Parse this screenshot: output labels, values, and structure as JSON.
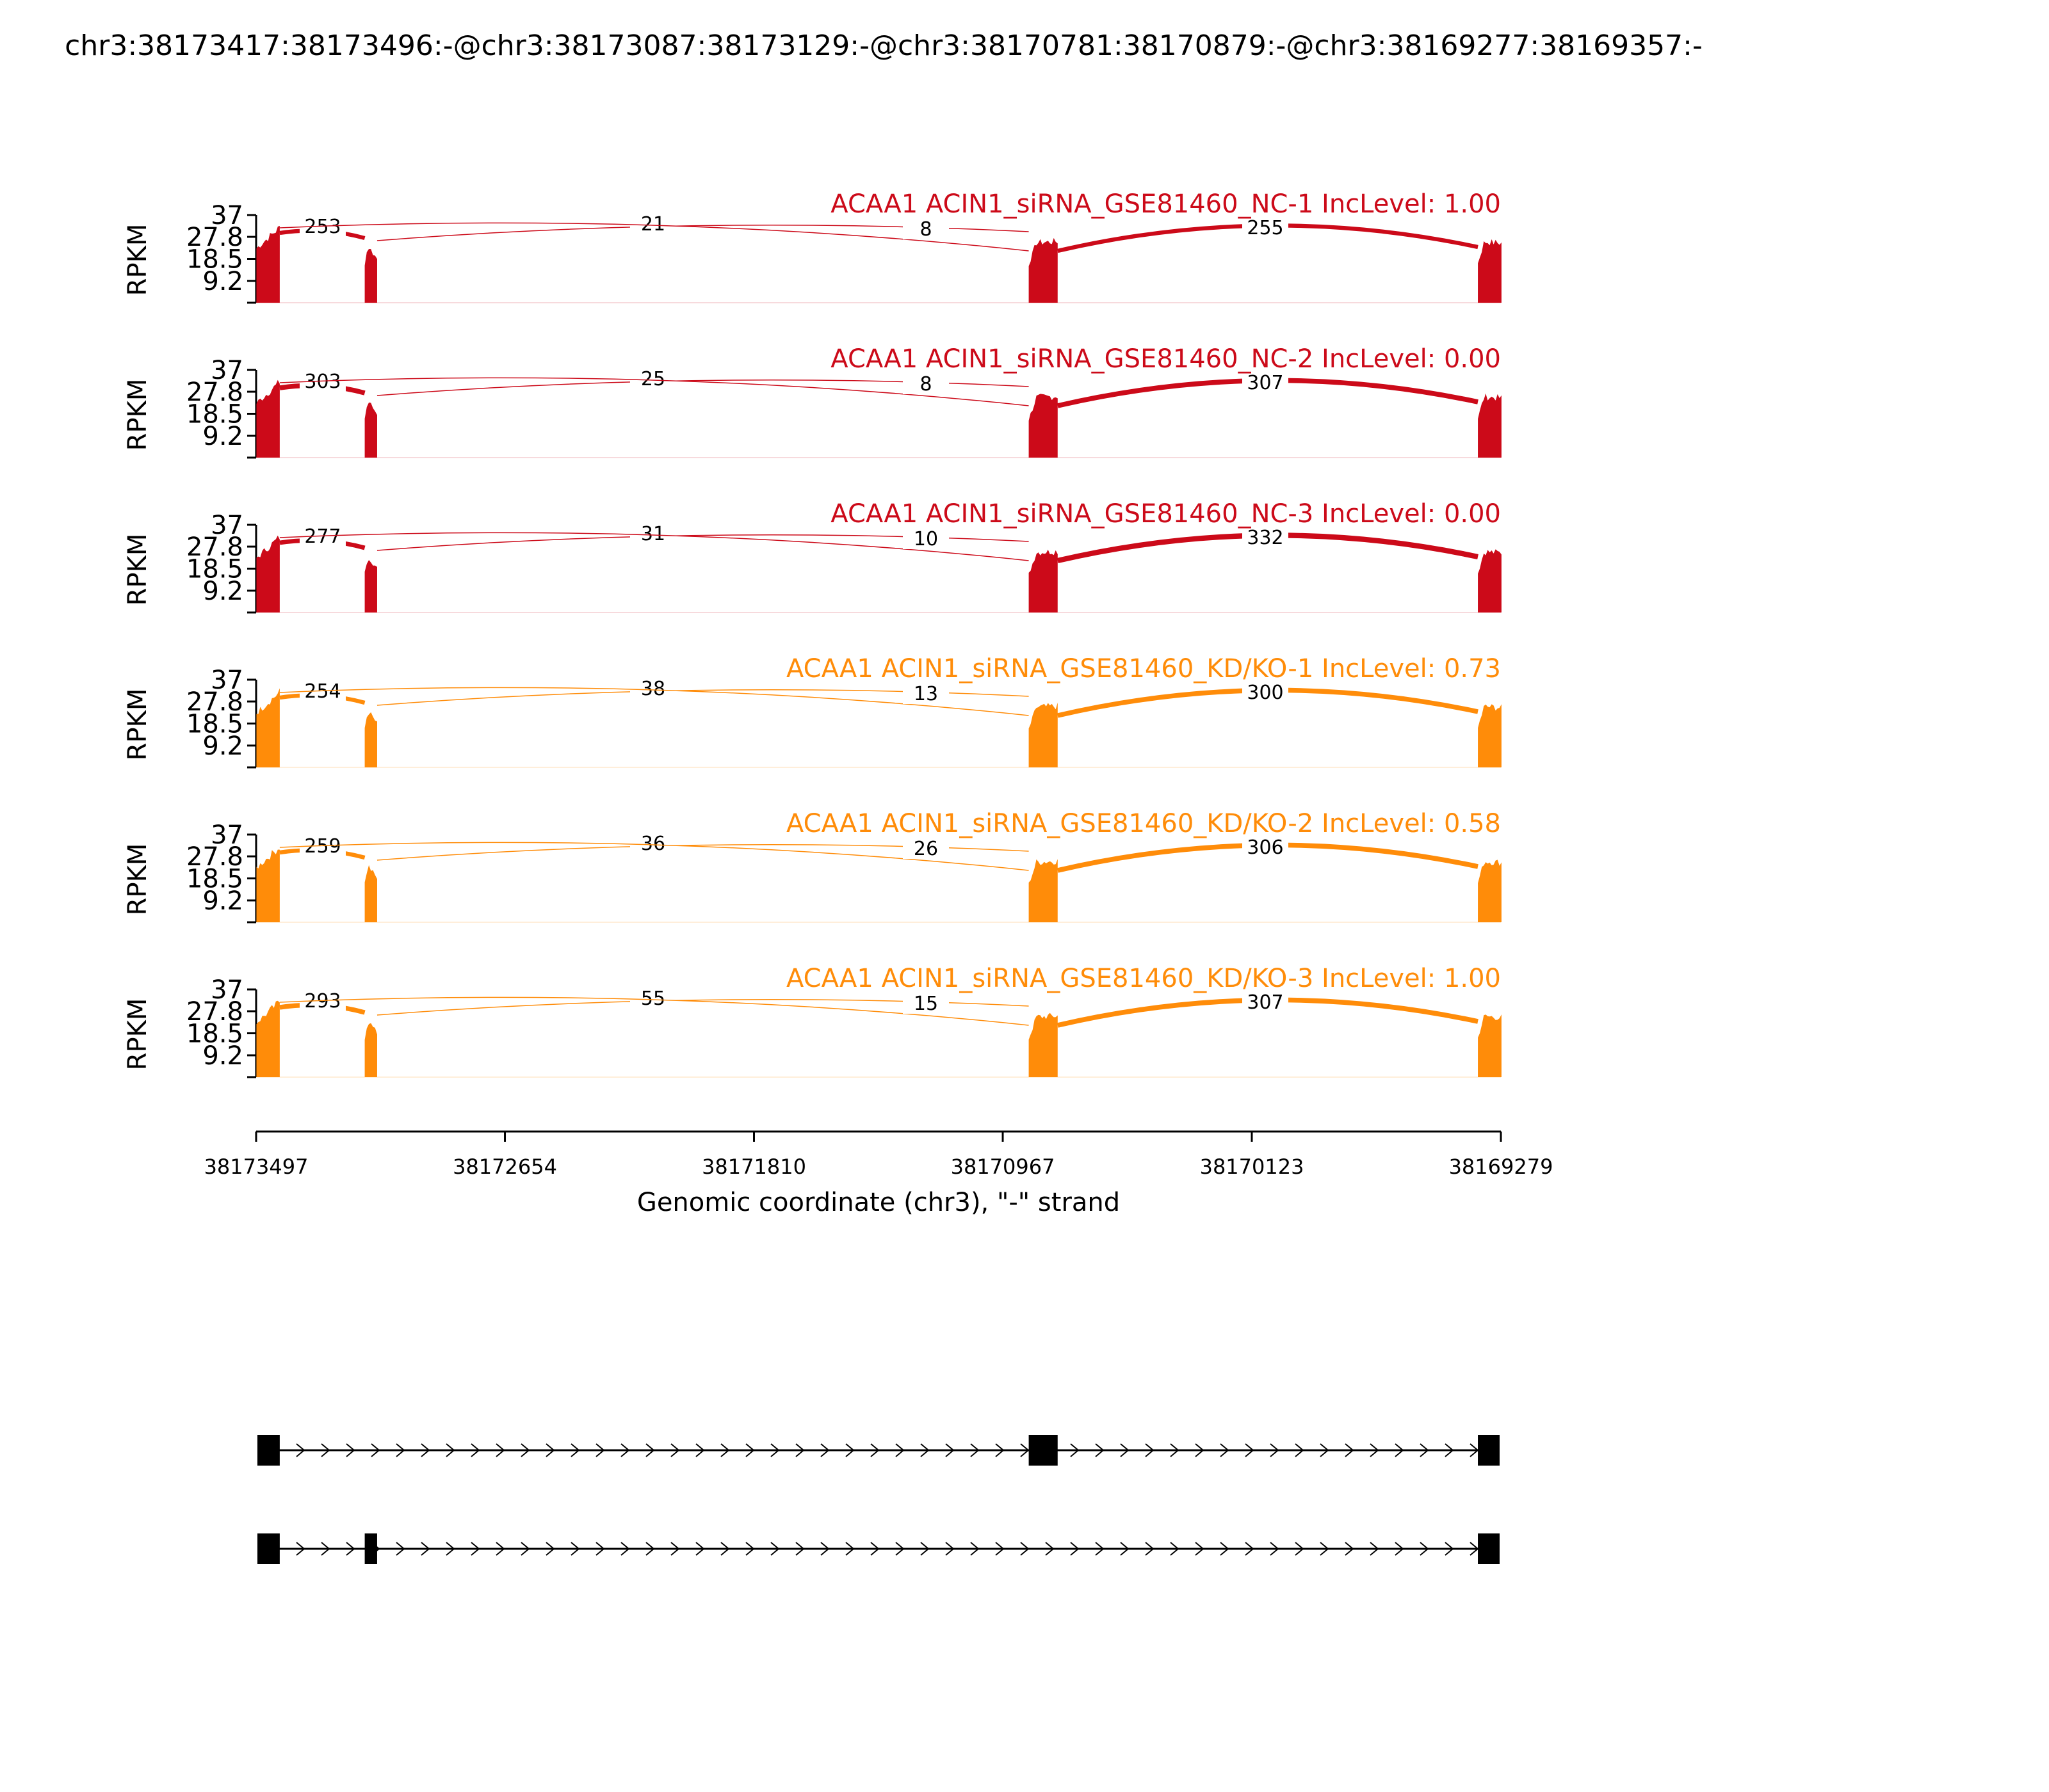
{
  "chart_data": {
    "type": "sashimi",
    "title": "chr3:38173417:38173496:-@chr3:38173087:38173129:-@chr3:38170781:38170879:-@chr3:38169277:38169357:-",
    "xlabel": "Genomic coordinate (chr3), \"-\" strand",
    "ylabel": "RPKM",
    "x_range": [
      38173497,
      38169279
    ],
    "x_ticks": [
      "38173497",
      "38172654",
      "38171810",
      "38170967",
      "38170123",
      "38169279"
    ],
    "y_range": [
      0,
      37
    ],
    "y_ticks": [
      "37",
      "27.8",
      "18.5",
      "9.2"
    ],
    "colors": {
      "NC": "#cc0a19",
      "KD": "#ff8c09",
      "structure": "#000000"
    },
    "exons": [
      {
        "start": 38173496,
        "end": 38173417
      },
      {
        "start": 38173129,
        "end": 38173087
      },
      {
        "start": 38170879,
        "end": 38170781
      },
      {
        "start": 38169357,
        "end": 38169277
      }
    ],
    "tracks": [
      {
        "group": "NC",
        "label": "ACAA1 ACIN1_siRNA_GSE81460_NC-1 IncLevel: 1.00",
        "junctions": [
          {
            "from": 38173417,
            "to": 38173129,
            "count": "253"
          },
          {
            "from": 38173087,
            "to": 38170879,
            "count": "21"
          },
          {
            "from": 38173417,
            "to": 38170879,
            "count": "8"
          },
          {
            "from": 38170781,
            "to": 38169357,
            "count": "255"
          }
        ]
      },
      {
        "group": "NC",
        "label": "ACAA1 ACIN1_siRNA_GSE81460_NC-2 IncLevel: 0.00",
        "junctions": [
          {
            "from": 38173417,
            "to": 38173129,
            "count": "303"
          },
          {
            "from": 38173087,
            "to": 38170879,
            "count": "25"
          },
          {
            "from": 38173417,
            "to": 38170879,
            "count": "8"
          },
          {
            "from": 38170781,
            "to": 38169357,
            "count": "307"
          }
        ]
      },
      {
        "group": "NC",
        "label": "ACAA1 ACIN1_siRNA_GSE81460_NC-3 IncLevel: 0.00",
        "junctions": [
          {
            "from": 38173417,
            "to": 38173129,
            "count": "277"
          },
          {
            "from": 38173087,
            "to": 38170879,
            "count": "31"
          },
          {
            "from": 38173417,
            "to": 38170879,
            "count": "10"
          },
          {
            "from": 38170781,
            "to": 38169357,
            "count": "332"
          }
        ]
      },
      {
        "group": "KD",
        "label": "ACAA1 ACIN1_siRNA_GSE81460_KD/KO-1 IncLevel: 0.73",
        "junctions": [
          {
            "from": 38173417,
            "to": 38173129,
            "count": "254"
          },
          {
            "from": 38173087,
            "to": 38170879,
            "count": "38"
          },
          {
            "from": 38173417,
            "to": 38170879,
            "count": "13"
          },
          {
            "from": 38170781,
            "to": 38169357,
            "count": "300"
          }
        ]
      },
      {
        "group": "KD",
        "label": "ACAA1 ACIN1_siRNA_GSE81460_KD/KO-2 IncLevel: 0.58",
        "junctions": [
          {
            "from": 38173417,
            "to": 38173129,
            "count": "259"
          },
          {
            "from": 38173087,
            "to": 38170879,
            "count": "36"
          },
          {
            "from": 38173417,
            "to": 38170879,
            "count": "26"
          },
          {
            "from": 38170781,
            "to": 38169357,
            "count": "306"
          }
        ]
      },
      {
        "group": "KD",
        "label": "ACAA1 ACIN1_siRNA_GSE81460_KD/KO-3 IncLevel: 1.00",
        "junctions": [
          {
            "from": 38173417,
            "to": 38173129,
            "count": "293"
          },
          {
            "from": 38173087,
            "to": 38170879,
            "count": "55"
          },
          {
            "from": 38173417,
            "to": 38170879,
            "count": "15"
          },
          {
            "from": 38170781,
            "to": 38169357,
            "count": "307"
          }
        ]
      }
    ],
    "isoforms": [
      {
        "exons": [
          0,
          2,
          3
        ]
      },
      {
        "exons": [
          0,
          1,
          3
        ]
      }
    ]
  }
}
